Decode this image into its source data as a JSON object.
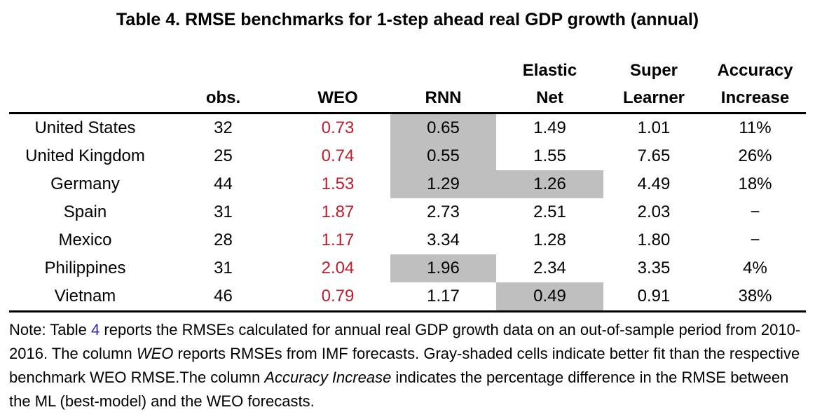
{
  "title": "Table 4. RMSE benchmarks for 1-step ahead real GDP growth (annual)",
  "colors": {
    "weo_value_red": "#bd1e2d",
    "link_blue": "#2929cc",
    "shaded_cell_gray": "#bfbfbf",
    "rule_black": "#000000"
  },
  "table": {
    "headers": {
      "country": "",
      "obs": "obs.",
      "weo": "WEO",
      "rnn": "RNN",
      "elastic_net": {
        "line1": "Elastic",
        "line2": "Net"
      },
      "super_learner": {
        "line1": "Super",
        "line2": "Learner"
      },
      "accuracy_increase": {
        "line1": "Accuracy",
        "line2": "Increase"
      }
    },
    "rows": [
      {
        "country": "United States",
        "obs": "32",
        "weo": "0.73",
        "rnn": "0.65",
        "elastic_net": "1.49",
        "super_learner": "1.01",
        "accuracy_increase": "11%",
        "rnn_shaded": true,
        "elastic_net_shaded": false
      },
      {
        "country": "United Kingdom",
        "obs": "25",
        "weo": "0.74",
        "rnn": "0.55",
        "elastic_net": "1.55",
        "super_learner": "7.65",
        "accuracy_increase": "26%",
        "rnn_shaded": true,
        "elastic_net_shaded": false
      },
      {
        "country": "Germany",
        "obs": "44",
        "weo": "1.53",
        "rnn": "1.29",
        "elastic_net": "1.26",
        "super_learner": "4.49",
        "accuracy_increase": "18%",
        "rnn_shaded": true,
        "elastic_net_shaded": true
      },
      {
        "country": "Spain",
        "obs": "31",
        "weo": "1.87",
        "rnn": "2.73",
        "elastic_net": "2.51",
        "super_learner": "2.03",
        "accuracy_increase": "−",
        "rnn_shaded": false,
        "elastic_net_shaded": false
      },
      {
        "country": "Mexico",
        "obs": "28",
        "weo": "1.17",
        "rnn": "3.34",
        "elastic_net": "1.28",
        "super_learner": "1.80",
        "accuracy_increase": "−",
        "rnn_shaded": false,
        "elastic_net_shaded": false
      },
      {
        "country": "Philippines",
        "obs": "31",
        "weo": "2.04",
        "rnn": "1.96",
        "elastic_net": "2.34",
        "super_learner": "3.35",
        "accuracy_increase": "4%",
        "rnn_shaded": true,
        "elastic_net_shaded": false
      },
      {
        "country": "Vietnam",
        "obs": "46",
        "weo": "0.79",
        "rnn": "1.17",
        "elastic_net": "0.49",
        "super_learner": "0.91",
        "accuracy_increase": "38%",
        "rnn_shaded": false,
        "elastic_net_shaded": true
      }
    ]
  },
  "note": {
    "prefix": "Note: Table ",
    "table_link": "4",
    "seg2": " reports the RMSEs calculated for annual real GDP growth data on an out-of-sample period from 2010-2016. The column ",
    "italic1": "WEO",
    "seg3": " reports RMSEs from IMF forecasts. Gray-shaded cells indicate better fit than the respective benchmark WEO RMSE.The column ",
    "italic2": "Accuracy Increase",
    "seg4": " indicates the percentage difference in the RMSE between the ML (best-model) and the WEO forecasts."
  }
}
